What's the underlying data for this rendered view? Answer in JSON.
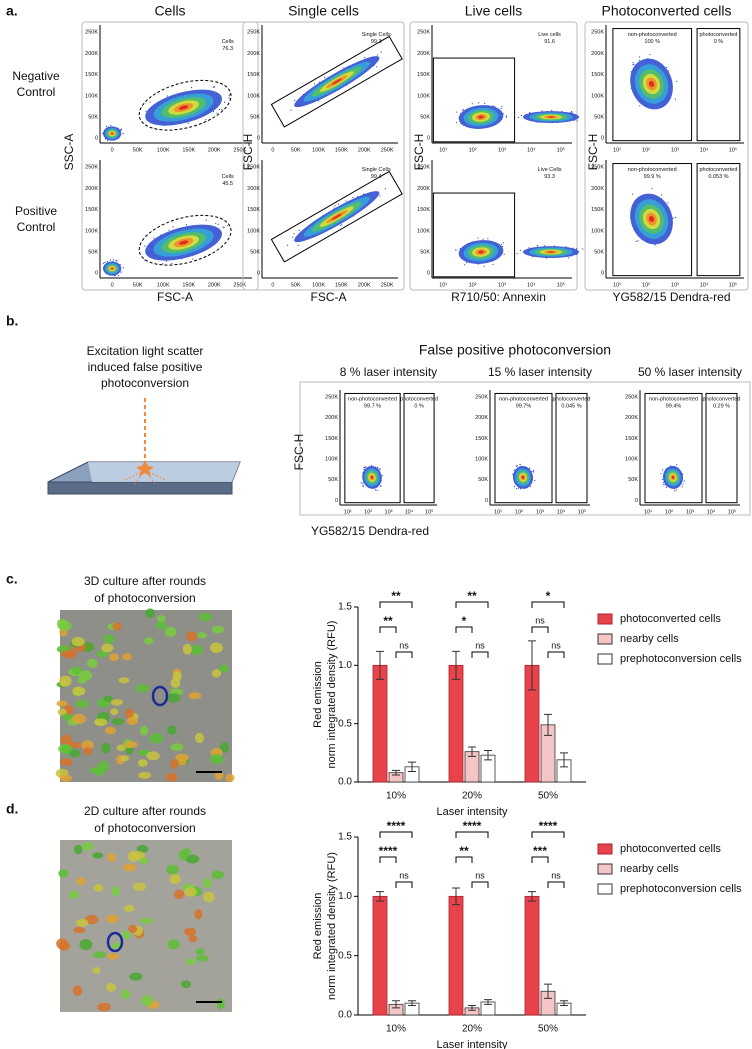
{
  "linear_ticks": [
    "0",
    "50K",
    "100K",
    "150K",
    "200K",
    "250K"
  ],
  "log_ticks": [
    "10¹",
    "10²",
    "10³",
    "10⁴",
    "10⁵"
  ],
  "panel_a": {
    "label": "a.",
    "row_labels": [
      [
        "Negative",
        "Control"
      ],
      [
        "Positive",
        "Control"
      ]
    ],
    "columns": [
      {
        "title": "Cells",
        "x_label": "FSC-A",
        "y_label": "SSC-A",
        "gates": [
          [
            [
              "Cells",
              "76.3"
            ]
          ],
          [
            [
              "Cells",
              "45.5"
            ]
          ]
        ]
      },
      {
        "title": "Single cells",
        "x_label": "FSC-A",
        "y_label": "FSC-H",
        "gates": [
          [
            [
              "Single Cells",
              "99.3"
            ]
          ],
          [
            [
              "Single Cells",
              "99.4"
            ]
          ]
        ]
      },
      {
        "title": "Live cells",
        "x_label": "R710/50: Annexin",
        "y_label": "FSC-H",
        "gates": [
          [
            [
              "Live cells",
              "91.6"
            ]
          ],
          [
            [
              "Live Cells",
              "93.3"
            ]
          ]
        ]
      },
      {
        "title": "Photoconverted cells",
        "x_label": "YG582/15 Dendra-red",
        "y_label": "FSC-H",
        "gates": [
          [
            [
              "non-photoconverted",
              "100 %"
            ],
            [
              "photoconverted",
              "0 %"
            ]
          ],
          [
            [
              "non-photoconverted",
              "99.9 %"
            ],
            [
              "photoconverted",
              "0.053 %"
            ]
          ]
        ]
      }
    ]
  },
  "panel_b": {
    "label": "b.",
    "caption": [
      "Excitation light scatter",
      "induced false positive",
      "photoconversion"
    ],
    "title": "False positive photoconversion",
    "y_label": "FSC-H",
    "x_label": "YG582/15 Dendra-red",
    "plots": [
      {
        "title": "8 % laser intensity",
        "gates": [
          [
            "non-photoconverted",
            "99.7 %"
          ],
          [
            "photoconverted",
            "0 %"
          ]
        ]
      },
      {
        "title": "15 % laser intensity",
        "gates": [
          [
            "non-photoconverted",
            "99.7%"
          ],
          [
            "photoconverted",
            "0.045 %"
          ]
        ]
      },
      {
        "title": "50 % laser intensity",
        "gates": [
          [
            "non-photoconverted",
            "99.4%"
          ],
          [
            "photoconverted",
            "0.29 %"
          ]
        ]
      }
    ]
  },
  "panel_c": {
    "label": "c.",
    "image_title": [
      "3D culture after rounds",
      "of photoconversion"
    ]
  },
  "panel_d": {
    "label": "d.",
    "image_title": [
      "2D culture after rounds",
      "of photoconversion"
    ]
  },
  "chart_data": [
    {
      "type": "bar",
      "y_label": [
        "Red emission",
        "norm integrated density (RFU)"
      ],
      "x_label": "Laser intensity",
      "categories": [
        "10%",
        "20%",
        "50%"
      ],
      "series": [
        {
          "name": "photoconverted cells",
          "color": "#e8434a",
          "values": [
            1.0,
            1.0,
            1.0
          ],
          "errors": [
            0.12,
            0.12,
            0.21
          ]
        },
        {
          "name": "nearby cells",
          "color": "#f5c4c4",
          "values": [
            0.08,
            0.26,
            0.49
          ],
          "errors": [
            0.02,
            0.04,
            0.09
          ]
        },
        {
          "name": "prephotoconversion cells",
          "color": "#ffffff",
          "values": [
            0.13,
            0.23,
            0.19
          ],
          "errors": [
            0.04,
            0.04,
            0.06
          ]
        }
      ],
      "ylim": [
        0,
        1.5
      ],
      "yticks": [
        {
          "value": 0,
          "label": "0.0"
        },
        0.5,
        {
          "value": 1,
          "label": "1.0"
        },
        1.5
      ],
      "annotations": [
        [
          "**",
          "**",
          "ns"
        ],
        [
          "**",
          "*",
          "ns"
        ],
        [
          "*",
          "ns",
          "ns"
        ]
      ]
    },
    {
      "type": "bar",
      "y_label": [
        "Red emission",
        "norm integrated density (RFU)"
      ],
      "x_label": "Laser intensity",
      "categories": [
        "10%",
        "20%",
        "50%"
      ],
      "series": [
        {
          "name": "photoconverted cells",
          "color": "#e8434a",
          "values": [
            1.0,
            1.0,
            1.0
          ],
          "errors": [
            0.04,
            0.07,
            0.04
          ]
        },
        {
          "name": "nearby cells",
          "color": "#f5c4c4",
          "values": [
            0.09,
            0.06,
            0.2
          ],
          "errors": [
            0.03,
            0.02,
            0.06
          ]
        },
        {
          "name": "prephotoconversion cells",
          "color": "#ffffff",
          "values": [
            0.1,
            0.11,
            0.1
          ],
          "errors": [
            0.02,
            0.02,
            0.02
          ]
        }
      ],
      "ylim": [
        0,
        1.5
      ],
      "yticks": [
        {
          "value": 0,
          "label": "0.0"
        },
        0.5,
        {
          "value": 1,
          "label": "1.0"
        },
        1.5
      ],
      "annotations": [
        [
          "****",
          "****",
          "ns"
        ],
        [
          "****",
          "**",
          "ns"
        ],
        [
          "****",
          "***",
          "ns"
        ]
      ]
    }
  ]
}
